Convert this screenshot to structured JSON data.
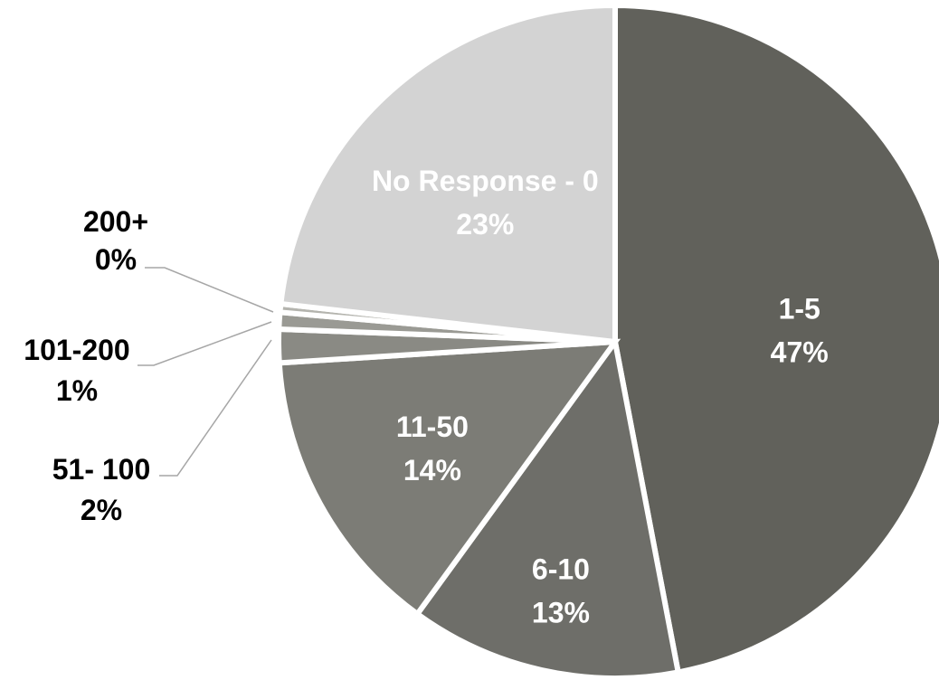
{
  "chart_data": {
    "type": "pie",
    "title": "",
    "start_angle_deg": 0,
    "direction": "clockwise",
    "slices": [
      {
        "label": "1-5",
        "value": 47,
        "display": "47%",
        "color": "#61615b",
        "label_color": "#ffffff",
        "label_position": "inside"
      },
      {
        "label": "6-10",
        "value": 13,
        "display": "13%",
        "color": "#6e6e69",
        "label_color": "#ffffff",
        "label_position": "inside"
      },
      {
        "label": "11-50",
        "value": 14,
        "display": "14%",
        "color": "#7c7c76",
        "label_color": "#ffffff",
        "label_position": "inside"
      },
      {
        "label": "51- 100",
        "value": 1.6,
        "display": "2%",
        "color": "#8a8a84",
        "label_color": "#000000",
        "label_position": "outside"
      },
      {
        "label": "101-200",
        "value": 0.8,
        "display": "1%",
        "color": "#9a9a94",
        "label_color": "#000000",
        "label_position": "outside"
      },
      {
        "label": "200+",
        "value": 0.4,
        "display": "0%",
        "color": "#b4b4ae",
        "label_color": "#000000",
        "label_position": "outside"
      },
      {
        "label": "No Response - 0",
        "value": 23.2,
        "display": "23%",
        "color": "#d3d3d3",
        "label_color": "#ffffff",
        "label_position": "inside"
      }
    ]
  }
}
